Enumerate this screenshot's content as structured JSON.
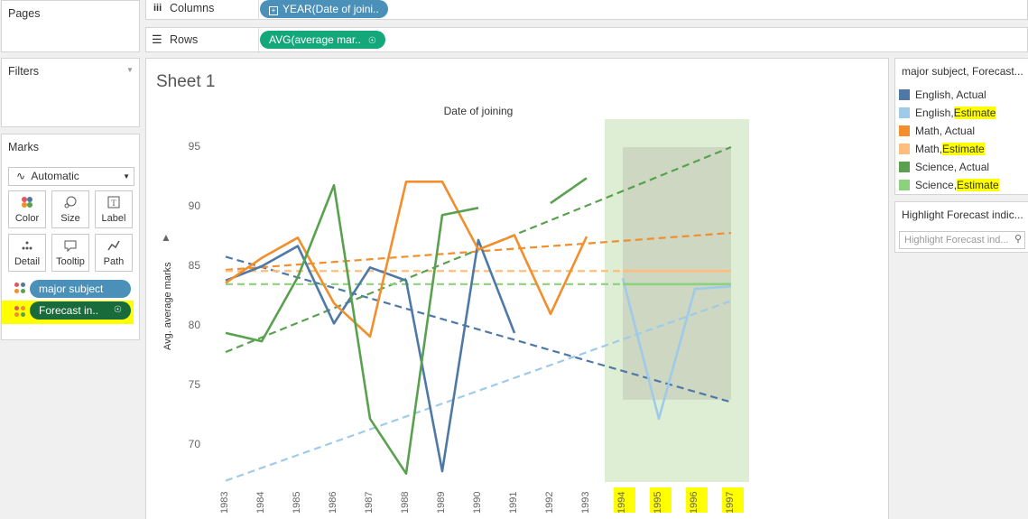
{
  "pages": {
    "title": "Pages"
  },
  "shelves": {
    "columns": {
      "label": "Columns",
      "pill": "YEAR(Date of joini.."
    },
    "rows": {
      "label": "Rows",
      "pill": "AVG(average mar.."
    }
  },
  "filters": {
    "title": "Filters"
  },
  "marks": {
    "title": "Marks",
    "type_select": "Automatic",
    "buttons": [
      "Color",
      "Size",
      "Label",
      "Detail",
      "Tooltip",
      "Path"
    ],
    "field1": "major subject",
    "field2": "Forecast in.."
  },
  "sheet": {
    "title": "Sheet 1"
  },
  "legend": {
    "title": "major subject, Forecast...",
    "items": [
      {
        "name": "English",
        "suffix": "Actual",
        "color": "#4e79a7"
      },
      {
        "name": "English",
        "suffix": "Estimate",
        "color": "#a0cbe8"
      },
      {
        "name": "Math",
        "suffix": "Actual",
        "color": "#f28e2b"
      },
      {
        "name": "Math",
        "suffix": "Estimate",
        "color": "#ffbe7d"
      },
      {
        "name": "Science",
        "suffix": "Actual",
        "color": "#59a14f"
      },
      {
        "name": "Science",
        "suffix": "Estimate",
        "color": "#8cd17d"
      }
    ]
  },
  "highlight": {
    "title": "Highlight Forecast indic...",
    "placeholder": "Highlight Forecast ind..."
  },
  "chart_data": {
    "type": "line",
    "title": "Date of joining",
    "ylabel": "Avg. average marks",
    "ylim": [
      66.9,
      97.1
    ],
    "y_ticks": [
      70,
      75,
      80,
      85,
      90,
      95
    ],
    "categories": [
      "1983",
      "1984",
      "1985",
      "1986",
      "1987",
      "1988",
      "1989",
      "1990",
      "1991",
      "1992",
      "1993",
      "1994",
      "1995",
      "1996",
      "1997"
    ],
    "forecast_band": {
      "from": "1994",
      "to": "1997"
    },
    "series": [
      {
        "name": "English, Actual",
        "color": "#4e79a7",
        "values": [
          83.8,
          85.0,
          86.7,
          80.2,
          84.9,
          83.8,
          67.8,
          87.2,
          79.4,
          null,
          null,
          null,
          null,
          null,
          null
        ]
      },
      {
        "name": "English, Estimate",
        "color": "#a0cbe8",
        "values": [
          null,
          null,
          null,
          null,
          null,
          null,
          null,
          null,
          null,
          null,
          null,
          84.0,
          72.2,
          83.1,
          83.3
        ]
      },
      {
        "name": "Math, Actual",
        "color": "#f28e2b",
        "values": [
          83.6,
          85.7,
          87.4,
          81.9,
          79.1,
          92.1,
          92.1,
          86.4,
          87.6,
          81.0,
          87.5,
          null,
          null,
          null,
          null
        ]
      },
      {
        "name": "Math, Estimate",
        "color": "#ffbe7d",
        "values": [
          null,
          null,
          null,
          null,
          null,
          null,
          null,
          null,
          null,
          null,
          null,
          84.6,
          84.6,
          84.6,
          84.6
        ]
      },
      {
        "name": "Science, Actual",
        "color": "#59a14f",
        "values": [
          79.4,
          78.7,
          84.1,
          91.8,
          72.2,
          67.6,
          89.3,
          89.9,
          null,
          90.3,
          92.4,
          null,
          null,
          null,
          null
        ]
      },
      {
        "name": "Science, Estimate",
        "color": "#8cd17d",
        "values": [
          null,
          null,
          null,
          null,
          null,
          null,
          null,
          null,
          null,
          null,
          null,
          83.5,
          83.5,
          83.5,
          83.5
        ]
      }
    ],
    "trend_lines": [
      {
        "color": "#4e79a7",
        "from": [
          1983,
          85.8
        ],
        "to": [
          1997,
          73.6
        ]
      },
      {
        "color": "#a0cbe8",
        "from": [
          1983,
          67.0
        ],
        "to": [
          1997,
          82.1
        ]
      },
      {
        "color": "#f28e2b",
        "from": [
          1983,
          84.7
        ],
        "to": [
          1997,
          87.8
        ]
      },
      {
        "color": "#ffbe7d",
        "from": [
          1983,
          84.6
        ],
        "to": [
          1997,
          84.6
        ]
      },
      {
        "color": "#59a14f",
        "from": [
          1983,
          77.8
        ],
        "to": [
          1997,
          95.0
        ]
      },
      {
        "color": "#8cd17d",
        "from": [
          1983,
          83.5
        ],
        "to": [
          1997,
          83.5
        ]
      }
    ]
  }
}
